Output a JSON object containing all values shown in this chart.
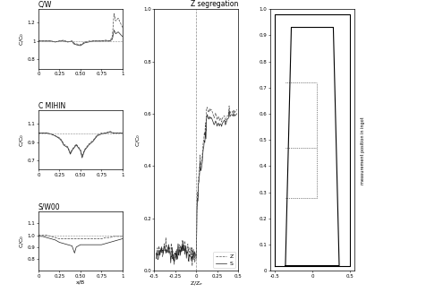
{
  "fig_width": 4.77,
  "fig_height": 3.36,
  "dpi": 100,
  "background": "#ffffff",
  "left_subplots": [
    {
      "title": "C/W",
      "ylim": [
        0.7,
        1.35
      ],
      "yticks": [
        0.8,
        1.0,
        1.2
      ],
      "yticklabels": [
        "0.8",
        "1",
        "1.2"
      ],
      "xlim": [
        0,
        1
      ],
      "xticks": [
        0,
        0.25,
        0.5,
        0.75,
        1.0
      ],
      "xticklabels": [
        "0",
        "0.25",
        "0.50",
        "0.75",
        "1"
      ],
      "line1_x": [
        0.0,
        0.05,
        0.1,
        0.15,
        0.2,
        0.25,
        0.3,
        0.35,
        0.4,
        0.42,
        0.45,
        0.5,
        0.55,
        0.6,
        0.65,
        0.7,
        0.75,
        0.8,
        0.85,
        0.88,
        0.9,
        0.92,
        0.95,
        1.0
      ],
      "line1_y": [
        1.0,
        1.0,
        1.0,
        1.0,
        0.99,
        1.0,
        1.01,
        0.99,
        1.0,
        0.98,
        0.97,
        0.96,
        0.99,
        1.0,
        1.0,
        1.0,
        1.0,
        1.01,
        1.0,
        1.05,
        1.3,
        1.22,
        1.25,
        1.15
      ],
      "line2_x": [
        0.0,
        0.05,
        0.1,
        0.15,
        0.2,
        0.25,
        0.3,
        0.35,
        0.4,
        0.42,
        0.45,
        0.5,
        0.55,
        0.6,
        0.65,
        0.7,
        0.75,
        0.8,
        0.85,
        0.88,
        0.9,
        0.92,
        0.95,
        1.0
      ],
      "line2_y": [
        1.0,
        1.0,
        1.0,
        1.0,
        0.99,
        1.0,
        1.0,
        0.99,
        1.0,
        0.97,
        0.96,
        0.95,
        0.98,
        0.99,
        1.0,
        1.0,
        1.0,
        1.0,
        1.0,
        1.02,
        1.12,
        1.08,
        1.1,
        1.05
      ]
    },
    {
      "title": "C MIHIN",
      "ylim": [
        0.6,
        1.25
      ],
      "yticks": [
        0.7,
        0.9,
        1.1
      ],
      "yticklabels": [
        "0.7",
        "0.9",
        "1.1"
      ],
      "xlim": [
        0,
        1
      ],
      "xticks": [
        0,
        0.25,
        0.5,
        0.75,
        1.0
      ],
      "xticklabels": [
        "0",
        "0.25",
        "0.50",
        "0.75",
        "1"
      ],
      "line1_x": [
        0.0,
        0.05,
        0.1,
        0.15,
        0.2,
        0.25,
        0.28,
        0.3,
        0.35,
        0.38,
        0.4,
        0.45,
        0.5,
        0.52,
        0.55,
        0.6,
        0.65,
        0.7,
        0.75,
        0.8,
        0.85,
        0.9,
        0.95,
        1.0
      ],
      "line1_y": [
        1.0,
        1.0,
        1.0,
        0.99,
        0.97,
        0.95,
        0.92,
        0.88,
        0.85,
        0.78,
        0.82,
        0.88,
        0.82,
        0.75,
        0.82,
        0.88,
        0.92,
        0.98,
        1.0,
        1.0,
        1.02,
        1.0,
        1.0,
        1.0
      ],
      "line2_x": [
        0.0,
        0.05,
        0.1,
        0.15,
        0.2,
        0.25,
        0.28,
        0.3,
        0.35,
        0.38,
        0.4,
        0.45,
        0.5,
        0.52,
        0.55,
        0.6,
        0.65,
        0.7,
        0.75,
        0.8,
        0.85,
        0.9,
        0.95,
        1.0
      ],
      "line2_y": [
        1.0,
        1.0,
        1.0,
        0.99,
        0.97,
        0.94,
        0.91,
        0.87,
        0.84,
        0.77,
        0.81,
        0.87,
        0.81,
        0.73,
        0.81,
        0.87,
        0.91,
        0.97,
        0.99,
        1.0,
        1.01,
        1.0,
        1.0,
        1.0
      ]
    },
    {
      "title": "S/W00",
      "ylim": [
        0.7,
        1.2
      ],
      "yticks": [
        0.8,
        0.9,
        1.0,
        1.1
      ],
      "yticklabels": [
        "0.8",
        "0.9",
        "1.0",
        "1.1"
      ],
      "xlim": [
        0,
        1
      ],
      "xticks": [
        0,
        0.25,
        0.5,
        0.75,
        1.0
      ],
      "xticklabels": [
        "0",
        "0.25",
        "0.50",
        "0.75",
        "1"
      ],
      "line1_x": [
        0.0,
        0.05,
        0.1,
        0.15,
        0.2,
        0.25,
        0.3,
        0.35,
        0.4,
        0.45,
        0.5,
        0.55,
        0.6,
        0.65,
        0.7,
        0.75,
        0.8,
        0.85,
        0.9,
        0.95,
        1.0
      ],
      "line1_y": [
        1.0,
        1.0,
        1.0,
        0.99,
        0.98,
        0.97,
        0.97,
        0.97,
        0.97,
        0.97,
        0.97,
        0.97,
        0.97,
        0.97,
        0.97,
        0.97,
        0.98,
        0.98,
        0.99,
        0.99,
        0.99
      ],
      "line2_x": [
        0.0,
        0.05,
        0.1,
        0.15,
        0.2,
        0.25,
        0.3,
        0.35,
        0.4,
        0.43,
        0.45,
        0.5,
        0.55,
        0.6,
        0.65,
        0.7,
        0.75,
        0.8,
        0.85,
        0.9,
        0.95,
        1.0
      ],
      "line2_y": [
        0.99,
        0.99,
        0.98,
        0.97,
        0.96,
        0.94,
        0.93,
        0.92,
        0.91,
        0.85,
        0.9,
        0.92,
        0.92,
        0.92,
        0.92,
        0.92,
        0.92,
        0.93,
        0.94,
        0.95,
        0.96,
        0.97
      ]
    }
  ],
  "mid_title": "Z segregation",
  "mid_xlabel": "Z/Z_e",
  "mid_ylabel": "C/C0",
  "mid_xlim": [
    -0.5,
    0.5
  ],
  "mid_xticks": [
    -0.5,
    -0.25,
    0,
    0.25,
    0.5
  ],
  "mid_xticklabels": [
    "-0.5",
    "-0.25",
    "0",
    "0.25",
    "0.5"
  ],
  "mid_ylim": [
    0.0,
    1.0
  ],
  "mid_yticks": [
    0.0,
    0.2,
    0.4,
    0.6,
    0.8,
    1.0
  ],
  "mid_yticklabels": [
    "0.0",
    "0.2",
    "0.4",
    "0.6",
    "0.8",
    "1.0"
  ],
  "legend_Z_label": "Z",
  "legend_S_label": "S",
  "line_color_Z": "#555555",
  "line_color_S": "#333333",
  "right_ytick_labels": [
    "0",
    "0.1",
    "0.2",
    "0.3",
    "0.4",
    "0.5",
    "0.6",
    "0.7",
    "0.8",
    "0.9",
    "1.0"
  ],
  "right_xtick_labels": [
    "-0.5",
    "0",
    "0.5"
  ],
  "fontsize_title": 5.5,
  "fontsize_label": 4.5,
  "fontsize_tick": 4.0,
  "fontsize_legend": 4.5
}
